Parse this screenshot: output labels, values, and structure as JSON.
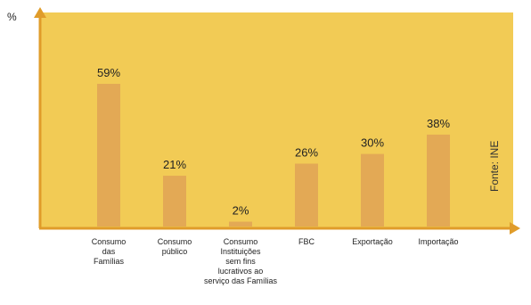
{
  "chart_data": {
    "type": "bar",
    "ylabel": "%",
    "categories": [
      "Consumo\ndas\nFamílias",
      "Consumo\npúblico",
      "Consumo\nInstituições\nsem fins\nlucrativos ao\nserviço das Famílias",
      "FBC",
      "Exportação",
      "Importação"
    ],
    "values": [
      59,
      21,
      2,
      26,
      30,
      38
    ],
    "data_labels": [
      "59%",
      "21%",
      "2%",
      "26%",
      "30%",
      "38%"
    ],
    "source": "Fonte: INE",
    "grid": false,
    "legend": "none",
    "colors": {
      "background": "#f2cb55",
      "bar": "#e3a955",
      "axis": "#e09c2a"
    }
  }
}
